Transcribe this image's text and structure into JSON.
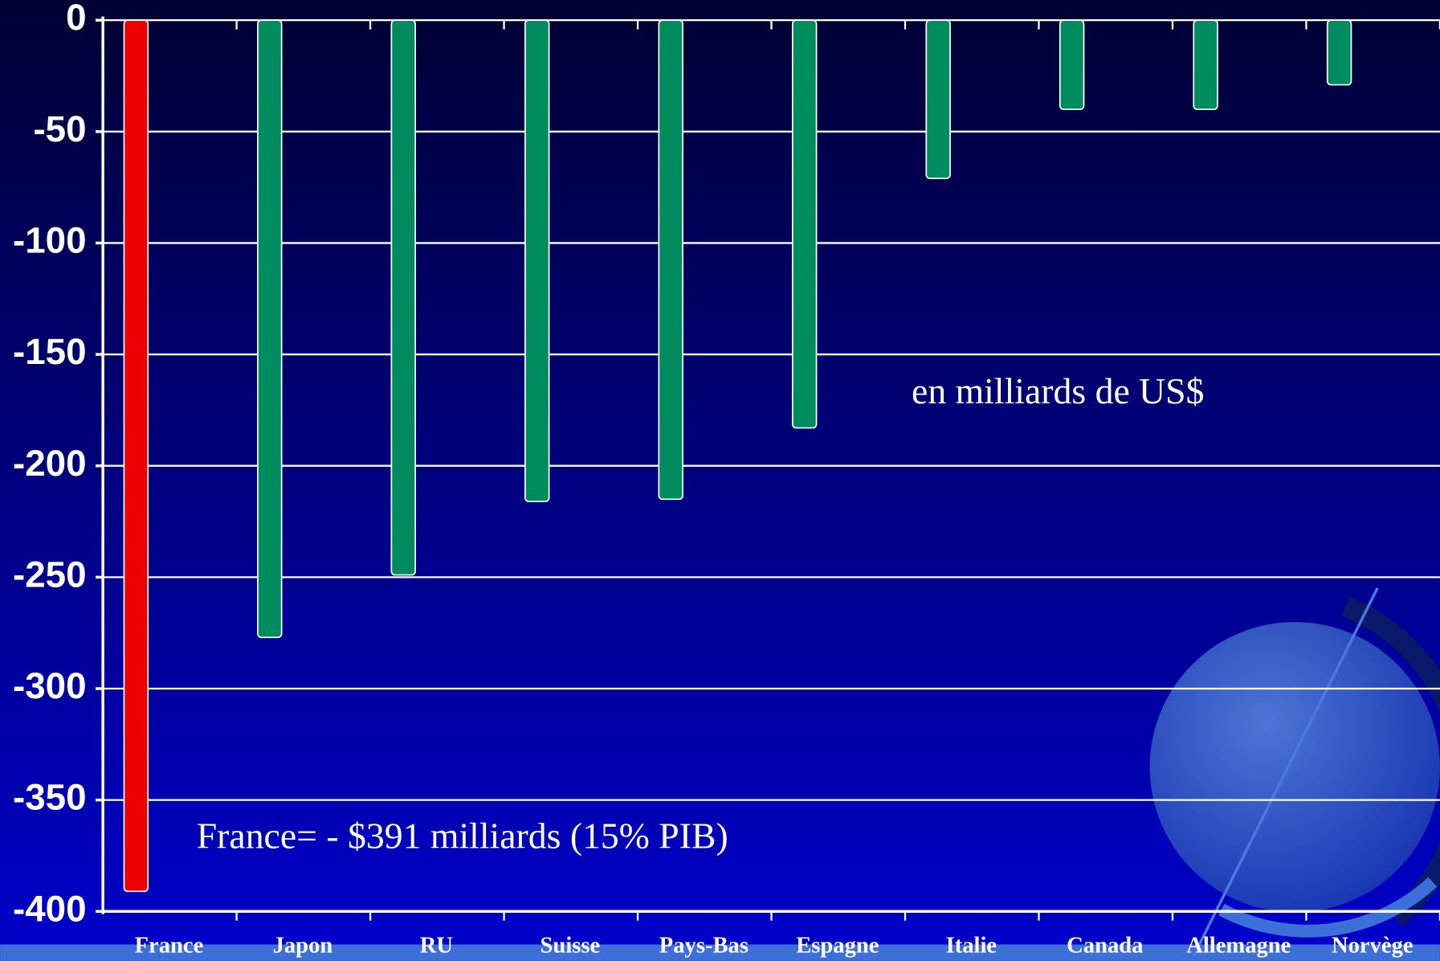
{
  "chart_data": {
    "type": "bar",
    "annotations": [
      "en milliards de US$",
      "France= - $391 milliards (15% PIB)"
    ],
    "categories": [
      "France",
      "Japon",
      "RU",
      "Suisse",
      "Pays-Bas",
      "Espagne",
      "Italie",
      "Canada",
      "Allemagne",
      "Norvège"
    ],
    "values": [
      -391,
      -277,
      -249,
      -216,
      -215,
      -183,
      -71,
      -40,
      -40,
      -29
    ],
    "colors": [
      "#ee0000",
      "#008c5e",
      "#008c5e",
      "#008c5e",
      "#008c5e",
      "#008c5e",
      "#008c5e",
      "#008c5e",
      "#008c5e",
      "#008c5e"
    ],
    "ylim": [
      -400,
      0
    ],
    "yticks": [
      0,
      -50,
      -100,
      -150,
      -200,
      -250,
      -300,
      -350,
      -400
    ],
    "grid": true
  }
}
